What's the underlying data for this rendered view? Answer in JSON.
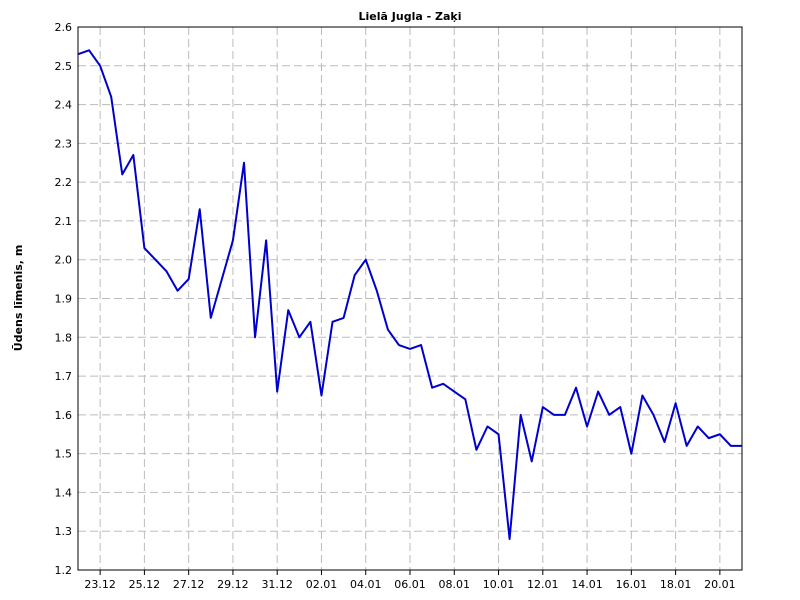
{
  "chart_data": {
    "type": "line",
    "title": "Lielā Jugla - Zaķi",
    "y_label": "Ūdens līmenis, m",
    "categories": [
      null,
      null,
      "23.12",
      null,
      null,
      null,
      "25.12",
      null,
      null,
      null,
      "27.12",
      null,
      null,
      null,
      "29.12",
      null,
      null,
      null,
      "31.12",
      null,
      null,
      null,
      "02.01",
      null,
      null,
      null,
      "04.01",
      null,
      null,
      null,
      "06.01",
      null,
      null,
      null,
      "08.01",
      null,
      null,
      null,
      "10.01",
      null,
      null,
      null,
      "12.01",
      null,
      null,
      null,
      "14.01",
      null,
      null,
      null,
      "16.01",
      null,
      null,
      null,
      "18.01",
      null,
      null,
      null,
      "20.01",
      null,
      null
    ],
    "values": [
      2.53,
      2.54,
      2.5,
      2.42,
      2.22,
      2.27,
      2.03,
      2.0,
      1.97,
      1.92,
      1.95,
      2.13,
      1.85,
      1.95,
      2.05,
      2.25,
      1.8,
      2.05,
      1.66,
      1.87,
      1.8,
      1.84,
      1.65,
      1.84,
      1.85,
      1.96,
      2.0,
      1.92,
      1.82,
      1.78,
      1.77,
      1.78,
      1.67,
      1.68,
      1.66,
      1.64,
      1.51,
      1.57,
      1.55,
      1.28,
      1.6,
      1.48,
      1.62,
      1.6,
      1.6,
      1.67,
      1.57,
      1.66,
      1.6,
      1.62,
      1.5,
      1.65,
      1.6,
      1.53,
      1.63,
      1.52,
      1.57,
      1.54,
      1.55,
      1.52,
      1.52
    ],
    "color": "#0000cc",
    "ylim": [
      1.2,
      2.6
    ],
    "yticks": [
      1.2,
      1.3,
      1.4,
      1.5,
      1.6,
      1.7,
      1.8,
      1.9,
      {
        "value": 2,
        "label": "2.0"
      },
      2.1,
      2.2,
      2.3,
      2.4,
      2.5,
      2.6
    ],
    "grid": true
  }
}
